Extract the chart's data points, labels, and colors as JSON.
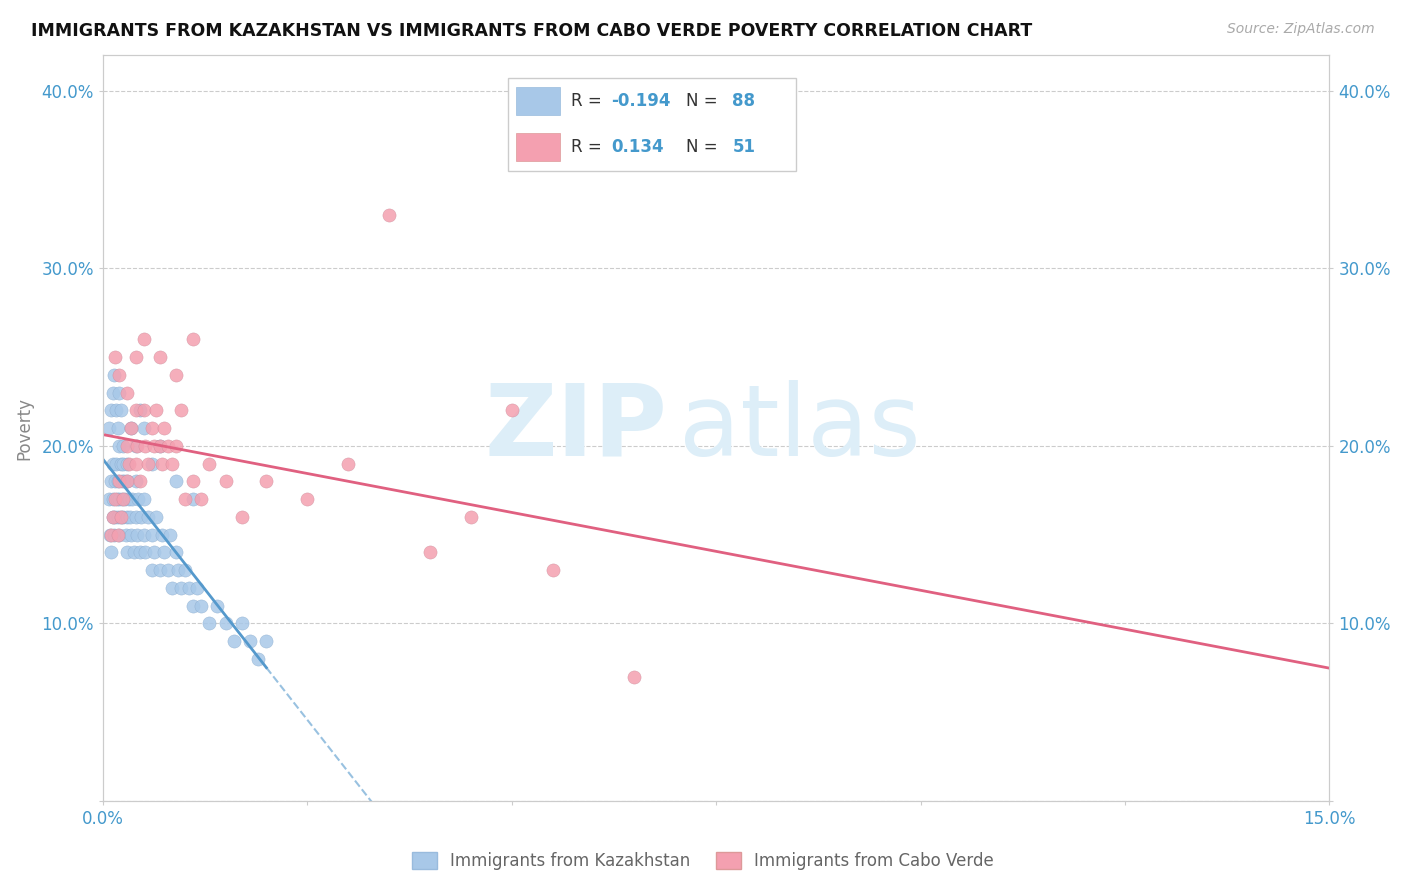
{
  "title": "IMMIGRANTS FROM KAZAKHSTAN VS IMMIGRANTS FROM CABO VERDE POVERTY CORRELATION CHART",
  "source": "Source: ZipAtlas.com",
  "ylabel": "Poverty",
  "xlim": [
    0.0,
    0.15
  ],
  "ylim": [
    0.0,
    0.42
  ],
  "xtick_positions": [
    0.0,
    0.025,
    0.05,
    0.075,
    0.1,
    0.125,
    0.15
  ],
  "xtick_labels": [
    "0.0%",
    "",
    "",
    "",
    "",
    "",
    "15.0%"
  ],
  "ytick_positions": [
    0.0,
    0.1,
    0.2,
    0.3,
    0.4
  ],
  "ytick_labels": [
    "",
    "10.0%",
    "20.0%",
    "30.0%",
    "40.0%"
  ],
  "legend_r_kaz": "-0.194",
  "legend_n_kaz": "88",
  "legend_r_cabo": "0.134",
  "legend_n_cabo": "51",
  "color_kaz": "#a8c8e8",
  "color_cabo": "#f4a0b0",
  "color_kaz_line": "#5599cc",
  "color_cabo_line": "#e06080",
  "watermark_zip": "ZIP",
  "watermark_atlas": "atlas",
  "watermark_color": "#ddeef8",
  "kaz_x": [
    0.0008,
    0.0009,
    0.001,
    0.001,
    0.0012,
    0.0012,
    0.0013,
    0.0014,
    0.0015,
    0.0015,
    0.0016,
    0.0017,
    0.0018,
    0.0018,
    0.002,
    0.002,
    0.002,
    0.0022,
    0.0022,
    0.0023,
    0.0024,
    0.0025,
    0.0025,
    0.0026,
    0.0027,
    0.0028,
    0.003,
    0.003,
    0.003,
    0.0032,
    0.0033,
    0.0035,
    0.0036,
    0.0038,
    0.004,
    0.004,
    0.0042,
    0.0043,
    0.0045,
    0.0047,
    0.005,
    0.005,
    0.0052,
    0.0055,
    0.006,
    0.006,
    0.0063,
    0.0065,
    0.007,
    0.0072,
    0.0075,
    0.008,
    0.0082,
    0.0085,
    0.009,
    0.0092,
    0.0095,
    0.01,
    0.0105,
    0.011,
    0.0115,
    0.012,
    0.013,
    0.014,
    0.015,
    0.016,
    0.017,
    0.018,
    0.019,
    0.02,
    0.0008,
    0.001,
    0.0012,
    0.0014,
    0.0016,
    0.0018,
    0.002,
    0.0022,
    0.0025,
    0.003,
    0.0035,
    0.004,
    0.0045,
    0.005,
    0.006,
    0.007,
    0.009,
    0.011
  ],
  "kaz_y": [
    0.17,
    0.15,
    0.18,
    0.14,
    0.16,
    0.19,
    0.17,
    0.15,
    0.18,
    0.16,
    0.19,
    0.17,
    0.16,
    0.18,
    0.2,
    0.17,
    0.15,
    0.19,
    0.16,
    0.18,
    0.17,
    0.19,
    0.16,
    0.18,
    0.17,
    0.15,
    0.18,
    0.16,
    0.14,
    0.17,
    0.16,
    0.15,
    0.17,
    0.14,
    0.16,
    0.18,
    0.15,
    0.17,
    0.14,
    0.16,
    0.15,
    0.17,
    0.14,
    0.16,
    0.13,
    0.15,
    0.14,
    0.16,
    0.13,
    0.15,
    0.14,
    0.13,
    0.15,
    0.12,
    0.14,
    0.13,
    0.12,
    0.13,
    0.12,
    0.11,
    0.12,
    0.11,
    0.1,
    0.11,
    0.1,
    0.09,
    0.1,
    0.09,
    0.08,
    0.09,
    0.21,
    0.22,
    0.23,
    0.24,
    0.22,
    0.21,
    0.23,
    0.22,
    0.2,
    0.19,
    0.21,
    0.2,
    0.22,
    0.21,
    0.19,
    0.2,
    0.18,
    0.17
  ],
  "cabo_x": [
    0.001,
    0.0012,
    0.0015,
    0.0018,
    0.002,
    0.0022,
    0.0025,
    0.003,
    0.003,
    0.0032,
    0.0035,
    0.004,
    0.004,
    0.0042,
    0.0045,
    0.005,
    0.0052,
    0.0055,
    0.006,
    0.0062,
    0.0065,
    0.007,
    0.0072,
    0.0075,
    0.008,
    0.0085,
    0.009,
    0.0095,
    0.01,
    0.011,
    0.012,
    0.013,
    0.015,
    0.017,
    0.02,
    0.025,
    0.03,
    0.035,
    0.04,
    0.045,
    0.055,
    0.065,
    0.0015,
    0.002,
    0.003,
    0.004,
    0.005,
    0.007,
    0.009,
    0.011,
    0.05
  ],
  "cabo_y": [
    0.15,
    0.16,
    0.17,
    0.15,
    0.18,
    0.16,
    0.17,
    0.2,
    0.18,
    0.19,
    0.21,
    0.19,
    0.22,
    0.2,
    0.18,
    0.22,
    0.2,
    0.19,
    0.21,
    0.2,
    0.22,
    0.2,
    0.19,
    0.21,
    0.2,
    0.19,
    0.2,
    0.22,
    0.17,
    0.18,
    0.17,
    0.19,
    0.18,
    0.16,
    0.18,
    0.17,
    0.19,
    0.33,
    0.14,
    0.16,
    0.13,
    0.07,
    0.25,
    0.24,
    0.23,
    0.25,
    0.26,
    0.25,
    0.24,
    0.26,
    0.22
  ]
}
